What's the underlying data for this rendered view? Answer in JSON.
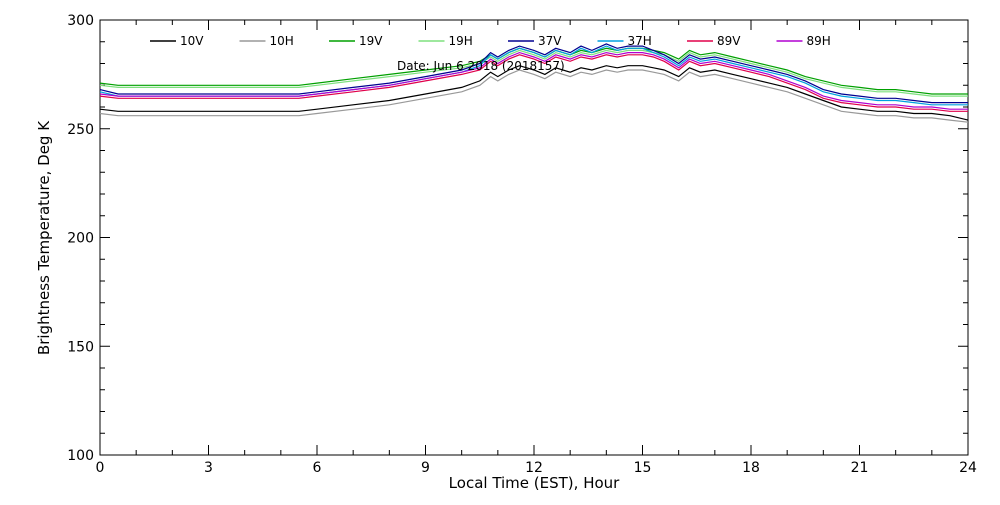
{
  "chart_data": {
    "type": "line",
    "title": "",
    "date_annotation": "Date: Jun 6 2018 (2018157)",
    "xlabel": "Local Time (EST), Hour",
    "ylabel": "Brightness Temperature, Deg K",
    "xlim": [
      0,
      24
    ],
    "ylim": [
      100,
      300
    ],
    "xticks": [
      0,
      3,
      6,
      9,
      12,
      15,
      18,
      21,
      24
    ],
    "yticks": [
      100,
      150,
      200,
      250,
      300
    ],
    "grid": false,
    "legend_position": "top",
    "x": [
      0,
      0.5,
      1,
      2,
      3,
      4,
      5,
      5.5,
      6,
      7,
      8,
      9,
      10,
      10.5,
      10.8,
      11,
      11.3,
      11.6,
      12,
      12.3,
      12.6,
      13,
      13.3,
      13.6,
      14,
      14.3,
      14.6,
      15,
      15.3,
      15.6,
      16,
      16.3,
      16.6,
      17,
      17.5,
      18,
      18.5,
      19,
      19.5,
      20,
      20.5,
      21,
      21.5,
      22,
      22.5,
      23,
      23.5,
      24
    ],
    "series": [
      {
        "name": "10V",
        "color": "#000000",
        "values": [
          259,
          258,
          258,
          258,
          258,
          258,
          258,
          258,
          259,
          261,
          263,
          266,
          269,
          272,
          276,
          274,
          277,
          279,
          277,
          275,
          278,
          276,
          278,
          277,
          279,
          278,
          279,
          279,
          278,
          277,
          274,
          278,
          276,
          277,
          275,
          273,
          271,
          269,
          266,
          263,
          260,
          259,
          258,
          258,
          257,
          257,
          256,
          254
        ]
      },
      {
        "name": "10H",
        "color": "#999999",
        "values": [
          257,
          256,
          256,
          256,
          256,
          256,
          256,
          256,
          257,
          259,
          261,
          264,
          267,
          270,
          274,
          272,
          275,
          277,
          275,
          273,
          276,
          274,
          276,
          275,
          277,
          276,
          277,
          277,
          276,
          275,
          272,
          276,
          274,
          275,
          273,
          271,
          269,
          267,
          264,
          261,
          258,
          257,
          256,
          256,
          255,
          255,
          254,
          253
        ]
      },
      {
        "name": "19V",
        "color": "#00a000",
        "values": [
          271,
          270,
          270,
          270,
          270,
          270,
          270,
          270,
          271,
          273,
          275,
          277,
          279,
          281,
          284,
          282,
          285,
          287,
          285,
          283,
          286,
          284,
          286,
          285,
          287,
          286,
          287,
          287,
          286,
          285,
          282,
          286,
          284,
          285,
          283,
          281,
          279,
          277,
          274,
          272,
          270,
          269,
          268,
          268,
          267,
          266,
          266,
          266
        ]
      },
      {
        "name": "19H",
        "color": "#7ee07e",
        "values": [
          270,
          269,
          269,
          269,
          269,
          269,
          269,
          269,
          270,
          272,
          274,
          276,
          278,
          280,
          283,
          281,
          284,
          286,
          284,
          282,
          285,
          283,
          285,
          284,
          286,
          285,
          286,
          286,
          285,
          284,
          281,
          285,
          283,
          284,
          282,
          280,
          278,
          276,
          273,
          271,
          269,
          268,
          267,
          267,
          266,
          265,
          265,
          265
        ]
      },
      {
        "name": "37V",
        "color": "#000090",
        "values": [
          268,
          266,
          266,
          266,
          266,
          266,
          266,
          266,
          267,
          269,
          271,
          274,
          277,
          280,
          285,
          283,
          286,
          288,
          286,
          284,
          287,
          285,
          288,
          286,
          289,
          287,
          288,
          288,
          286,
          284,
          280,
          284,
          282,
          283,
          281,
          279,
          277,
          275,
          272,
          268,
          266,
          265,
          264,
          264,
          263,
          262,
          262,
          262
        ]
      },
      {
        "name": "37H",
        "color": "#00a0e0",
        "values": [
          267,
          265,
          265,
          265,
          265,
          265,
          265,
          265,
          266,
          268,
          270,
          273,
          276,
          279,
          284,
          282,
          285,
          287,
          285,
          283,
          286,
          284,
          287,
          285,
          288,
          286,
          287,
          287,
          285,
          283,
          279,
          283,
          281,
          282,
          280,
          278,
          276,
          274,
          271,
          267,
          265,
          264,
          263,
          263,
          262,
          261,
          261,
          261
        ]
      },
      {
        "name": "89V",
        "color": "#e0004a",
        "values": [
          265,
          264,
          264,
          264,
          264,
          264,
          264,
          264,
          265,
          267,
          269,
          272,
          275,
          277,
          281,
          279,
          282,
          284,
          282,
          280,
          283,
          281,
          283,
          282,
          284,
          283,
          284,
          284,
          283,
          281,
          277,
          281,
          279,
          280,
          278,
          276,
          274,
          271,
          268,
          264,
          262,
          261,
          260,
          260,
          259,
          259,
          258,
          258
        ]
      },
      {
        "name": "89H",
        "color": "#b000d0",
        "values": [
          266,
          265,
          265,
          265,
          265,
          265,
          265,
          265,
          266,
          268,
          270,
          273,
          276,
          278,
          282,
          280,
          283,
          285,
          283,
          281,
          284,
          282,
          284,
          283,
          285,
          284,
          285,
          285,
          284,
          282,
          278,
          282,
          280,
          281,
          279,
          277,
          275,
          272,
          269,
          265,
          263,
          262,
          261,
          261,
          260,
          260,
          259,
          259
        ]
      }
    ]
  }
}
